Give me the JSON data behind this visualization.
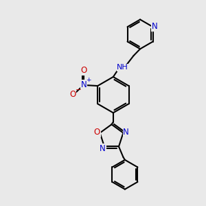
{
  "bg_color": "#e9e9e9",
  "bond_color": "#000000",
  "N_color": "#0000cc",
  "O_color": "#cc0000",
  "font_size": 8.0,
  "line_width": 1.5,
  "figsize": [
    3.0,
    3.0
  ],
  "dpi": 100,
  "xlim": [
    0,
    10
  ],
  "ylim": [
    0,
    10
  ]
}
